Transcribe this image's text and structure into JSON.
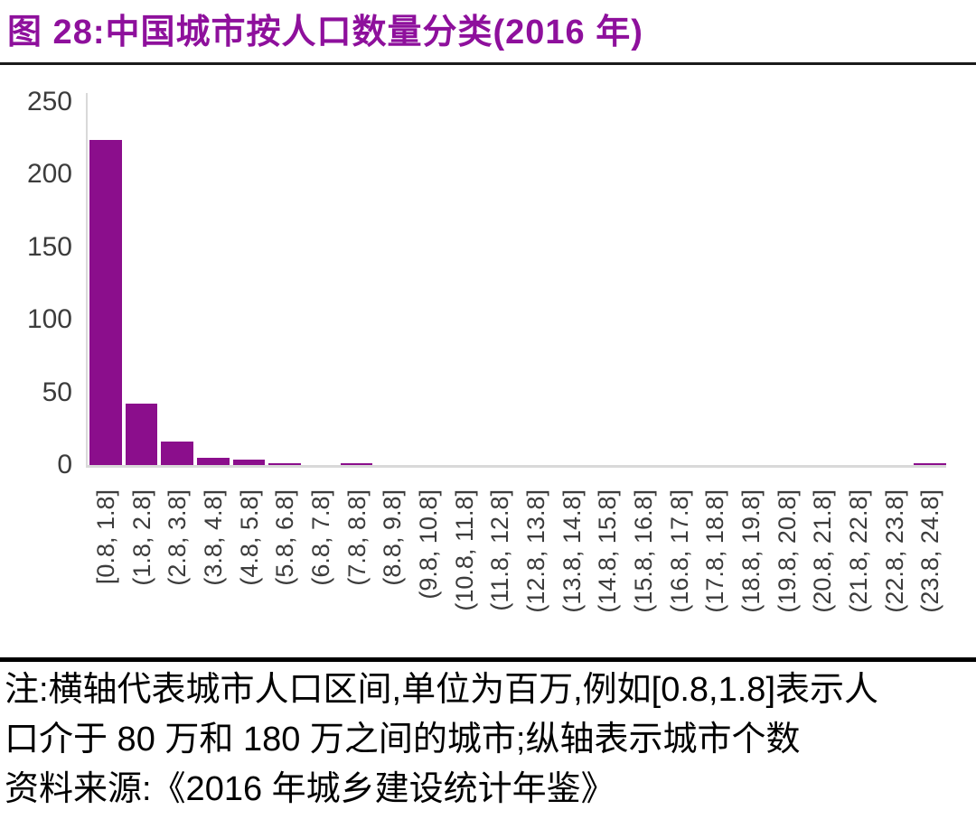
{
  "title": "图 28:中国城市按人口数量分类(2016 年)",
  "colors": {
    "title_purple": "#8E109C",
    "bar_purple": "#8B0E8C",
    "axis_gray": "#D9D9D9",
    "tick_text": "#3C3C3C",
    "divider_top": "#1A1A1A",
    "divider_bottom": "#000000"
  },
  "chart_data": {
    "type": "bar",
    "title": "中国城市按人口数量分类(2016 年)",
    "xlabel": "",
    "ylabel": "",
    "ylim": [
      0,
      250
    ],
    "yticks": [
      0,
      50,
      100,
      150,
      200,
      250
    ],
    "grid": false,
    "legend": "none",
    "bar_color": "#8B0E8C",
    "categories": [
      "[0.8, 1.8]",
      "(1.8, 2.8]",
      "(2.8, 3.8]",
      "(3.8, 4.8]",
      "(4.8, 5.8]",
      "(5.8, 6.8]",
      "(6.8, 7.8]",
      "(7.8, 8.8]",
      "(8.8, 9.8]",
      "(9.8, 10.8]",
      "(10.8, 11.8]",
      "(11.8, 12.8]",
      "(12.8, 13.8]",
      "(13.8, 14.8]",
      "(14.8, 15.8]",
      "(15.8, 16.8]",
      "(16.8, 17.8]",
      "(17.8, 18.8]",
      "(18.8, 19.8]",
      "(19.8, 20.8]",
      "(20.8, 21.8]",
      "(21.8, 22.8]",
      "(22.8, 23.8]",
      "(23.8, 24.8]"
    ],
    "values": [
      224,
      42,
      16,
      5,
      4,
      1,
      0,
      1,
      0,
      0,
      0,
      0,
      0,
      0,
      0,
      0,
      0,
      0,
      0,
      0,
      0,
      0,
      0,
      1
    ]
  },
  "notes": {
    "line1": "注:横轴代表城市人口区间,单位为百万,例如[0.8,1.8]表示人",
    "line2": "口介于 80 万和 180 万之间的城市;纵轴表示城市个数",
    "line3": "资料来源:《2016 年城乡建设统计年鉴》"
  }
}
